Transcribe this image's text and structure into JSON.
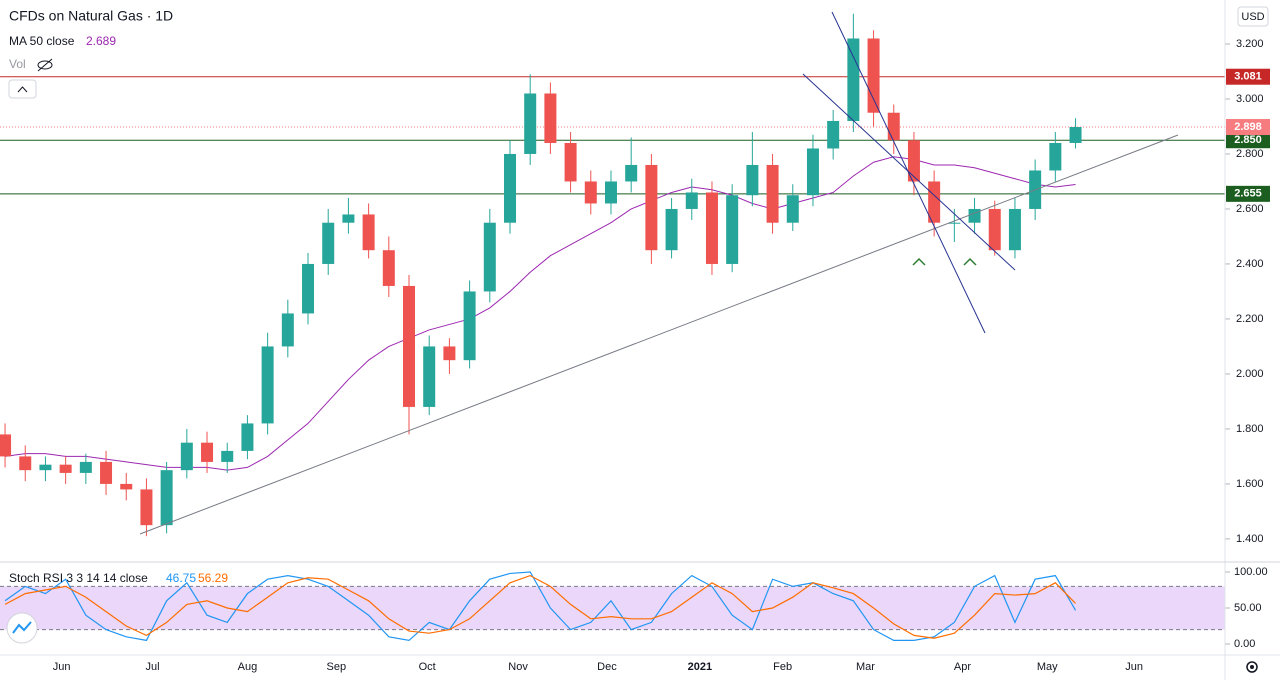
{
  "header": {
    "title": "CFDs on Natural Gas · 1D",
    "ma_label": "MA 50 close",
    "vol_label": "Vol",
    "currency": "USD"
  },
  "chart_data": [
    {
      "type": "candlestick",
      "open": [
        1.78,
        1.7,
        1.65,
        1.67,
        1.64,
        1.68,
        1.6,
        1.58,
        1.45,
        1.65,
        1.75,
        1.68,
        1.72,
        1.82,
        2.1,
        2.22,
        2.4,
        2.55,
        2.58,
        2.45,
        2.32,
        1.88,
        2.1,
        2.05,
        2.3,
        2.55,
        2.8,
        3.02,
        2.84,
        2.7,
        2.62,
        2.7,
        2.76,
        2.45,
        2.6,
        2.66,
        2.4,
        2.65,
        2.76,
        2.55,
        2.65,
        2.82,
        2.92,
        3.22,
        2.95,
        2.85,
        2.7,
        2.55,
        2.55,
        2.6,
        2.45,
        2.6,
        2.74,
        2.84
      ],
      "high": [
        1.82,
        1.74,
        1.7,
        1.7,
        1.71,
        1.72,
        1.64,
        1.62,
        1.68,
        1.8,
        1.79,
        1.75,
        1.85,
        2.15,
        2.27,
        2.44,
        2.6,
        2.64,
        2.62,
        2.5,
        2.36,
        2.14,
        2.13,
        2.34,
        2.6,
        2.85,
        3.09,
        3.06,
        2.88,
        2.74,
        2.74,
        2.86,
        2.8,
        2.64,
        2.71,
        2.7,
        2.69,
        2.88,
        2.8,
        2.69,
        2.87,
        2.96,
        3.31,
        3.25,
        2.98,
        2.88,
        2.74,
        2.6,
        2.64,
        2.63,
        2.64,
        2.78,
        2.88,
        2.93
      ],
      "low": [
        1.66,
        1.61,
        1.61,
        1.6,
        1.6,
        1.56,
        1.54,
        1.41,
        1.42,
        1.62,
        1.64,
        1.64,
        1.69,
        1.78,
        2.06,
        2.18,
        2.36,
        2.51,
        2.42,
        2.28,
        1.78,
        1.85,
        2.0,
        2.02,
        2.26,
        2.51,
        2.76,
        2.8,
        2.66,
        2.58,
        2.58,
        2.66,
        2.4,
        2.42,
        2.56,
        2.36,
        2.37,
        2.61,
        2.51,
        2.52,
        2.61,
        2.78,
        2.88,
        2.9,
        2.8,
        2.65,
        2.5,
        2.48,
        2.51,
        2.43,
        2.42,
        2.56,
        2.7,
        2.82
      ],
      "close": [
        1.7,
        1.65,
        1.67,
        1.64,
        1.68,
        1.6,
        1.58,
        1.45,
        1.65,
        1.75,
        1.68,
        1.72,
        1.82,
        2.1,
        2.22,
        2.4,
        2.55,
        2.58,
        2.45,
        2.32,
        1.88,
        2.1,
        2.05,
        2.3,
        2.55,
        2.8,
        3.02,
        2.84,
        2.7,
        2.62,
        2.7,
        2.76,
        2.45,
        2.6,
        2.66,
        2.4,
        2.65,
        2.76,
        2.55,
        2.65,
        2.82,
        2.92,
        3.22,
        2.95,
        2.85,
        2.7,
        2.55,
        2.55,
        2.6,
        2.45,
        2.6,
        2.74,
        2.84,
        2.898
      ],
      "up_color": "#26a69a",
      "down_color": "#ef5350",
      "last_color": "#f77c80",
      "ma": {
        "color": "#9c27b0",
        "values": [
          1.7,
          1.71,
          1.71,
          1.7,
          1.7,
          1.69,
          1.68,
          1.67,
          1.66,
          1.66,
          1.66,
          1.65,
          1.66,
          1.7,
          1.76,
          1.82,
          1.9,
          1.98,
          2.05,
          2.1,
          2.13,
          2.16,
          2.18,
          2.2,
          2.24,
          2.3,
          2.37,
          2.43,
          2.47,
          2.51,
          2.55,
          2.6,
          2.63,
          2.66,
          2.68,
          2.67,
          2.65,
          2.62,
          2.6,
          2.62,
          2.64,
          2.66,
          2.72,
          2.77,
          2.79,
          2.78,
          2.76,
          2.76,
          2.75,
          2.73,
          2.71,
          2.69,
          2.68,
          2.689
        ]
      },
      "levels": [
        {
          "value": 3.081,
          "label": "3.081",
          "color": "#c62828"
        },
        {
          "value": 2.85,
          "label": "2.850",
          "color": "#1b5e20"
        },
        {
          "value": 2.655,
          "label": "2.655",
          "color": "#1b5e20"
        }
      ],
      "xlim": [
        -0.25,
        60.4
      ],
      "xticks": [
        {
          "value": 2.8,
          "label": "Jun"
        },
        {
          "value": 7.3,
          "label": "Jul"
        },
        {
          "value": 12.0,
          "label": "Aug"
        },
        {
          "value": 16.4,
          "label": "Sep"
        },
        {
          "value": 20.9,
          "label": "Oct"
        },
        {
          "value": 25.4,
          "label": "Nov"
        },
        {
          "value": 29.8,
          "label": "Dec"
        },
        {
          "value": 34.4,
          "label": "2021"
        },
        {
          "value": 38.5,
          "label": "Feb"
        },
        {
          "value": 42.6,
          "label": "Mar"
        },
        {
          "value": 47.4,
          "label": "Apr"
        },
        {
          "value": 51.6,
          "label": "May"
        },
        {
          "value": 55.9,
          "label": "Jun"
        }
      ],
      "ylim": [
        1.316,
        3.36
      ],
      "yticks": [
        {
          "value": 1.4,
          "label": "1.400"
        },
        {
          "value": 1.6,
          "label": "1.600"
        },
        {
          "value": 1.8,
          "label": "1.800"
        },
        {
          "value": 2.0,
          "label": "2.000"
        },
        {
          "value": 2.2,
          "label": "2.200"
        },
        {
          "value": 2.4,
          "label": "2.400"
        },
        {
          "value": 2.6,
          "label": "2.600"
        },
        {
          "value": 2.8,
          "label": "2.800"
        },
        {
          "value": 3.0,
          "label": "3.000"
        },
        {
          "value": 3.2,
          "label": "3.200"
        }
      ]
    },
    {
      "type": "line",
      "title": "Stoch RSI 3 3 14 14 close",
      "series": [
        {
          "color": "#2196f3",
          "values": [
            60,
            80,
            70,
            90,
            40,
            20,
            10,
            5,
            60,
            85,
            40,
            30,
            70,
            90,
            95,
            90,
            80,
            60,
            40,
            10,
            5,
            30,
            20,
            60,
            90,
            98,
            100,
            50,
            20,
            30,
            60,
            20,
            30,
            70,
            95,
            80,
            40,
            20,
            90,
            80,
            85,
            70,
            60,
            20,
            5,
            5,
            10,
            30,
            80,
            95,
            30,
            90,
            95,
            46.75
          ]
        },
        {
          "color": "#ff6d00",
          "values": [
            55,
            70,
            75,
            80,
            65,
            45,
            25,
            12,
            30,
            55,
            60,
            50,
            45,
            65,
            85,
            92,
            90,
            75,
            60,
            35,
            18,
            15,
            20,
            35,
            60,
            85,
            95,
            80,
            55,
            35,
            38,
            35,
            35,
            45,
            65,
            85,
            70,
            45,
            50,
            65,
            85,
            78,
            70,
            50,
            28,
            12,
            8,
            15,
            40,
            70,
            68,
            70,
            85,
            56.29
          ]
        }
      ],
      "band": [
        20,
        80
      ],
      "band_color": "#e1c6f7",
      "ylim": [
        0,
        100
      ],
      "yticks": [
        {
          "value": 0,
          "label": "0.00"
        },
        {
          "value": 50,
          "label": "50.00"
        },
        {
          "value": 100,
          "label": "100.00"
        }
      ]
    }
  ]
}
